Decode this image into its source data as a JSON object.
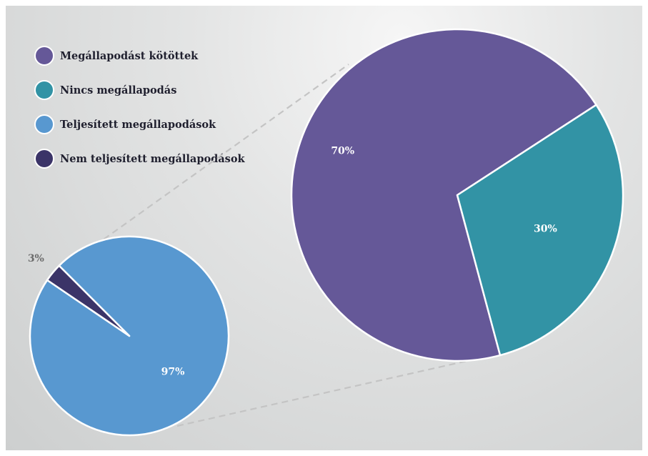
{
  "chart_data": {
    "type": "pie",
    "legend_position": "top-left",
    "legend": [
      {
        "label": "Megállapodást kötöttek",
        "color": "#655898"
      },
      {
        "label": "Nincs megállapodás",
        "color": "#3293a5"
      },
      {
        "label": "Teljesített megállapodások",
        "color": "#5898d0"
      },
      {
        "label": "Nem teljesített megállapodások",
        "color": "#3b3468"
      }
    ],
    "pies": [
      {
        "slices": [
          {
            "label": "Megállapodást kötöttek",
            "value": 70,
            "display": "70%",
            "color": "#655898"
          },
          {
            "label": "Nincs megállapodás",
            "value": 30,
            "display": "30%",
            "color": "#3293a5"
          }
        ]
      },
      {
        "slices": [
          {
            "label": "Teljesített megállapodások",
            "value": 97,
            "display": "97%",
            "color": "#5898d0"
          },
          {
            "label": "Nem teljesített megállapodások",
            "value": 3,
            "display": "3%",
            "color": "#3b3468"
          }
        ]
      }
    ]
  }
}
